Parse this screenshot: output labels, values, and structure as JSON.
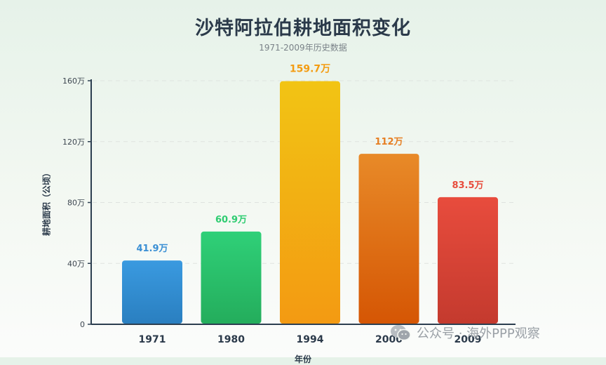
{
  "title": "沙特阿拉伯耕地面积变化",
  "subtitle": "1971-2009年历史数据",
  "watermark": "公众号 · 海外PPP观察",
  "chart_data": {
    "type": "bar",
    "title": "沙特阿拉伯耕地面积变化",
    "subtitle": "1971-2009年历史数据",
    "ylabel": "耕地面积（公顷）",
    "xlabel": "年份",
    "categories": [
      "1971",
      "1980",
      "1994",
      "2000",
      "2009"
    ],
    "values": [
      419000,
      609000,
      1597000,
      1120000,
      835000
    ],
    "data_labels": [
      "41.9万",
      "60.9万",
      "159.7万",
      "112万",
      "83.5万"
    ],
    "ylim": [
      0,
      1600000
    ],
    "yticks": [
      0,
      400000,
      800000,
      1200000,
      1600000
    ],
    "ytick_labels": [
      "0",
      "40万",
      "80万",
      "120万",
      "160万"
    ],
    "grid": true,
    "legend": "none",
    "colors": {
      "1971": [
        "#3a9ae0",
        "#2a7fc0"
      ],
      "1980": [
        "#2fd078",
        "#24ad5c"
      ],
      "1994": [
        "#f2c414",
        "#f39a12"
      ],
      "2000": [
        "#e88a28",
        "#d55604"
      ],
      "2009": [
        "#e84c3d",
        "#c43a2e"
      ]
    },
    "label_colors": [
      "#3a8fd4",
      "#2ecc71",
      "#f39c12",
      "#e67e22",
      "#e74c3c"
    ]
  }
}
